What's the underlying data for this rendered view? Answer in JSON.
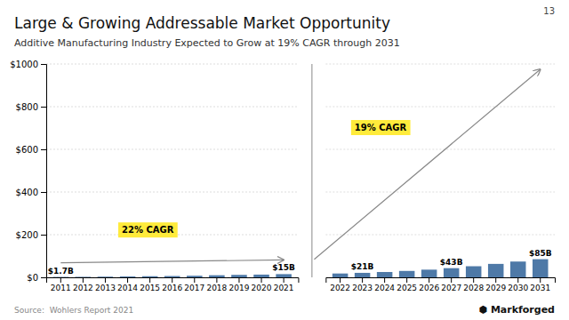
{
  "title": "Large & Growing Addressable Market Opportunity",
  "subtitle": "Additive Manufacturing Industry Expected to Grow at 19% CAGR through 2031",
  "page_number": "13",
  "source": "Source:  Wohlers Report 2021",
  "logo": "⬢ Markforged",
  "chart_data": [
    {
      "type": "bar",
      "categories": [
        "2011",
        "2012",
        "2013",
        "2014",
        "2015",
        "2016",
        "2017",
        "2018",
        "2019",
        "2020",
        "2021"
      ],
      "values": [
        1.7,
        2.2,
        3.1,
        4.1,
        5.2,
        6.1,
        7.4,
        9.8,
        11.5,
        12.8,
        15.0
      ],
      "value_labels": [
        "$1.7B",
        null,
        null,
        null,
        null,
        null,
        null,
        null,
        null,
        null,
        "$15B"
      ],
      "ylim": [
        0,
        1000
      ],
      "yticks": [
        {
          "value": 0,
          "label": "$0"
        },
        {
          "value": 200,
          "label": "$200"
        },
        {
          "value": 400,
          "label": "$400"
        },
        {
          "value": 600,
          "label": "$600"
        },
        {
          "value": 800,
          "label": "$800"
        },
        {
          "value": 1000,
          "label": "$1000"
        }
      ],
      "grid": true,
      "annotation": "22% CAGR"
    },
    {
      "type": "bar",
      "categories": [
        "2022",
        "2023",
        "2024",
        "2025",
        "2026",
        "2027",
        "2028",
        "2029",
        "2030",
        "2031"
      ],
      "values": [
        18.0,
        21.0,
        25.0,
        30.0,
        36.0,
        43.0,
        52.0,
        63.0,
        74.0,
        85.0
      ],
      "value_labels": [
        null,
        "$21B",
        null,
        null,
        null,
        "$43B",
        null,
        null,
        null,
        "$85B"
      ],
      "ylim": [
        0,
        1000
      ],
      "yticks": [
        {
          "value": 0,
          "label": "$0"
        },
        {
          "value": 200,
          "label": "$200"
        },
        {
          "value": 400,
          "label": "$400"
        },
        {
          "value": 600,
          "label": "$600"
        },
        {
          "value": 800,
          "label": "$800"
        },
        {
          "value": 1000,
          "label": "$1000"
        }
      ],
      "grid": true,
      "tick_labels": "x",
      "annotation": "19% CAGR"
    }
  ]
}
